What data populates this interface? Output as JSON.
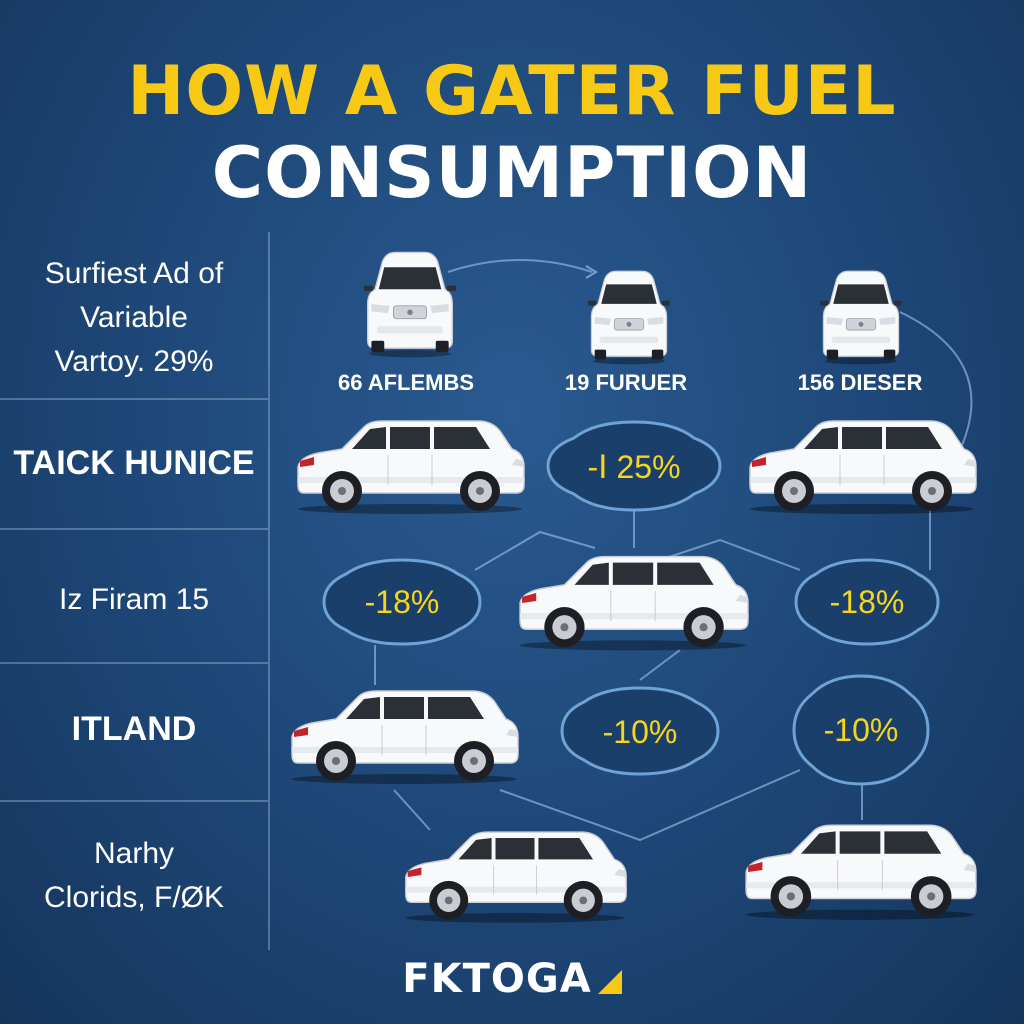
{
  "title": {
    "line1": "HOW A GATER FUEL",
    "line2": "CONSUMPTION"
  },
  "rows": [
    {
      "label_lines": [
        "Surfiest Ad of",
        "Variable",
        "Vartoy. 29%"
      ]
    },
    {
      "label": "TAICK HUNICE"
    },
    {
      "label": "Iz Firam 15"
    },
    {
      "label": "ITLAND"
    },
    {
      "label_lines": [
        "Narhy",
        "Clorids, F/ØK"
      ]
    }
  ],
  "columns": [
    {
      "label": "66 AFLEMBS"
    },
    {
      "label": "19 FURUER"
    },
    {
      "label": "156 DIESER"
    }
  ],
  "badges": [
    {
      "value": "-Ⅰ 25%"
    },
    {
      "value": "-18%"
    },
    {
      "value": "-18%"
    },
    {
      "value": "-10%"
    },
    {
      "value": "-10%"
    }
  ],
  "logo": {
    "text": "FKTOGA"
  },
  "colors": {
    "background": "#1d4676",
    "title_accent": "#f7c914",
    "badge_text": "#f7d51f",
    "car_body": "#ffffff"
  },
  "icons": [
    "suv-front-icon",
    "suv-side-icon",
    "cloud-badge"
  ]
}
